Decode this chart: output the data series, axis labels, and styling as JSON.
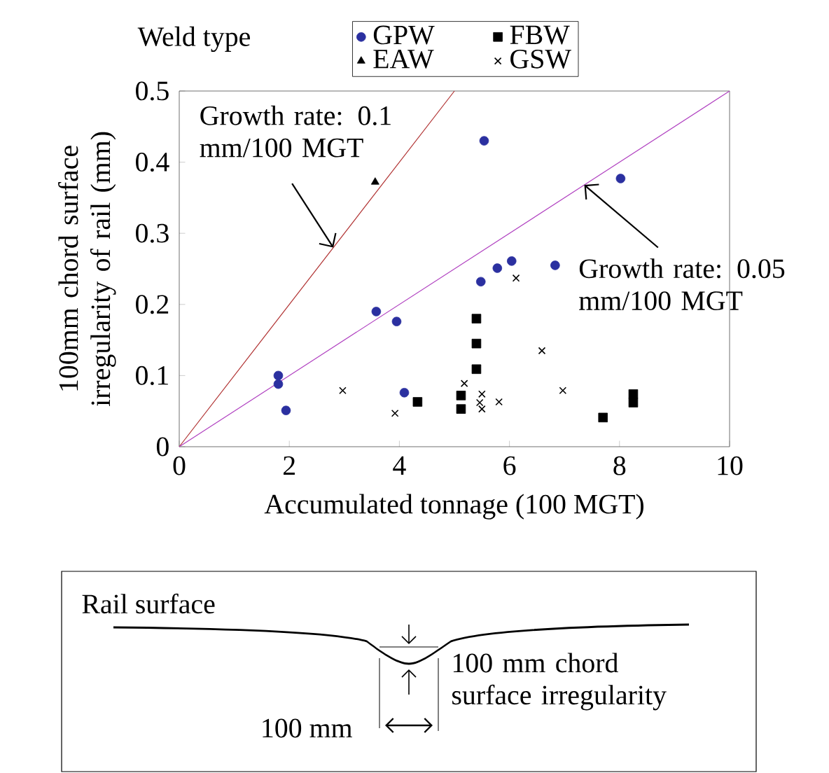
{
  "chart_data": {
    "type": "scatter",
    "xlabel": "Accumulated tonnage (100 MGT)",
    "ylabel": "100mm chord surface irregularity of rail (mm)",
    "legend_title": "Weld type",
    "legend": "top",
    "xlim": [
      0,
      10
    ],
    "ylim": [
      0,
      0.5
    ],
    "xticks": [
      0,
      2,
      4,
      6,
      8,
      10
    ],
    "yticks": [
      0,
      0.1,
      0.2,
      0.3,
      0.4,
      0.5
    ],
    "series": [
      {
        "name": "GPW",
        "color": "#2b30a0",
        "marker": "circle",
        "x": [
          1.8,
          1.8,
          1.94,
          3.58,
          3.95,
          4.09,
          5.54,
          5.48,
          5.78,
          6.04,
          6.83,
          8.02
        ],
        "values": [
          0.1,
          0.088,
          0.051,
          0.19,
          0.176,
          0.076,
          0.43,
          0.232,
          0.251,
          0.261,
          0.255,
          0.377
        ]
      },
      {
        "name": "FBW",
        "color": "#000000",
        "marker": "square",
        "x": [
          4.33,
          5.12,
          5.12,
          5.4,
          5.4,
          5.4,
          7.7,
          8.25,
          8.25
        ],
        "values": [
          0.063,
          0.072,
          0.053,
          0.18,
          0.145,
          0.109,
          0.041,
          0.074,
          0.062
        ]
      },
      {
        "name": "EAW",
        "color": "#000000",
        "marker": "triangle",
        "x": [
          3.56
        ],
        "values": [
          0.372
        ]
      },
      {
        "name": "GSW",
        "color": "#000000",
        "marker": "cross",
        "x": [
          2.97,
          3.92,
          5.18,
          5.5,
          5.5,
          5.46,
          5.81,
          6.12,
          6.59,
          6.97
        ],
        "values": [
          0.079,
          0.047,
          0.089,
          0.074,
          0.053,
          0.062,
          0.063,
          0.237,
          0.135,
          0.079
        ]
      },
      {
        "type": "line",
        "color": "#b03030",
        "marker": "none",
        "x": [
          0,
          5
        ],
        "values": [
          0,
          0.5
        ]
      },
      {
        "type": "line",
        "color": "#b040c0",
        "marker": "none",
        "x": [
          0,
          10
        ],
        "values": [
          0,
          0.5
        ]
      }
    ],
    "annotations": [
      {
        "text": "Growth rate: 0.1 mm/100 MGT",
        "x": 2.8,
        "y": 0.28
      },
      {
        "text": "Growth rate: 0.05 mm/100 MGT",
        "x": 7.36,
        "y": 0.368
      },
      "Rail surface",
      "100 mm chord surface irregularity",
      "100 mm"
    ]
  }
}
